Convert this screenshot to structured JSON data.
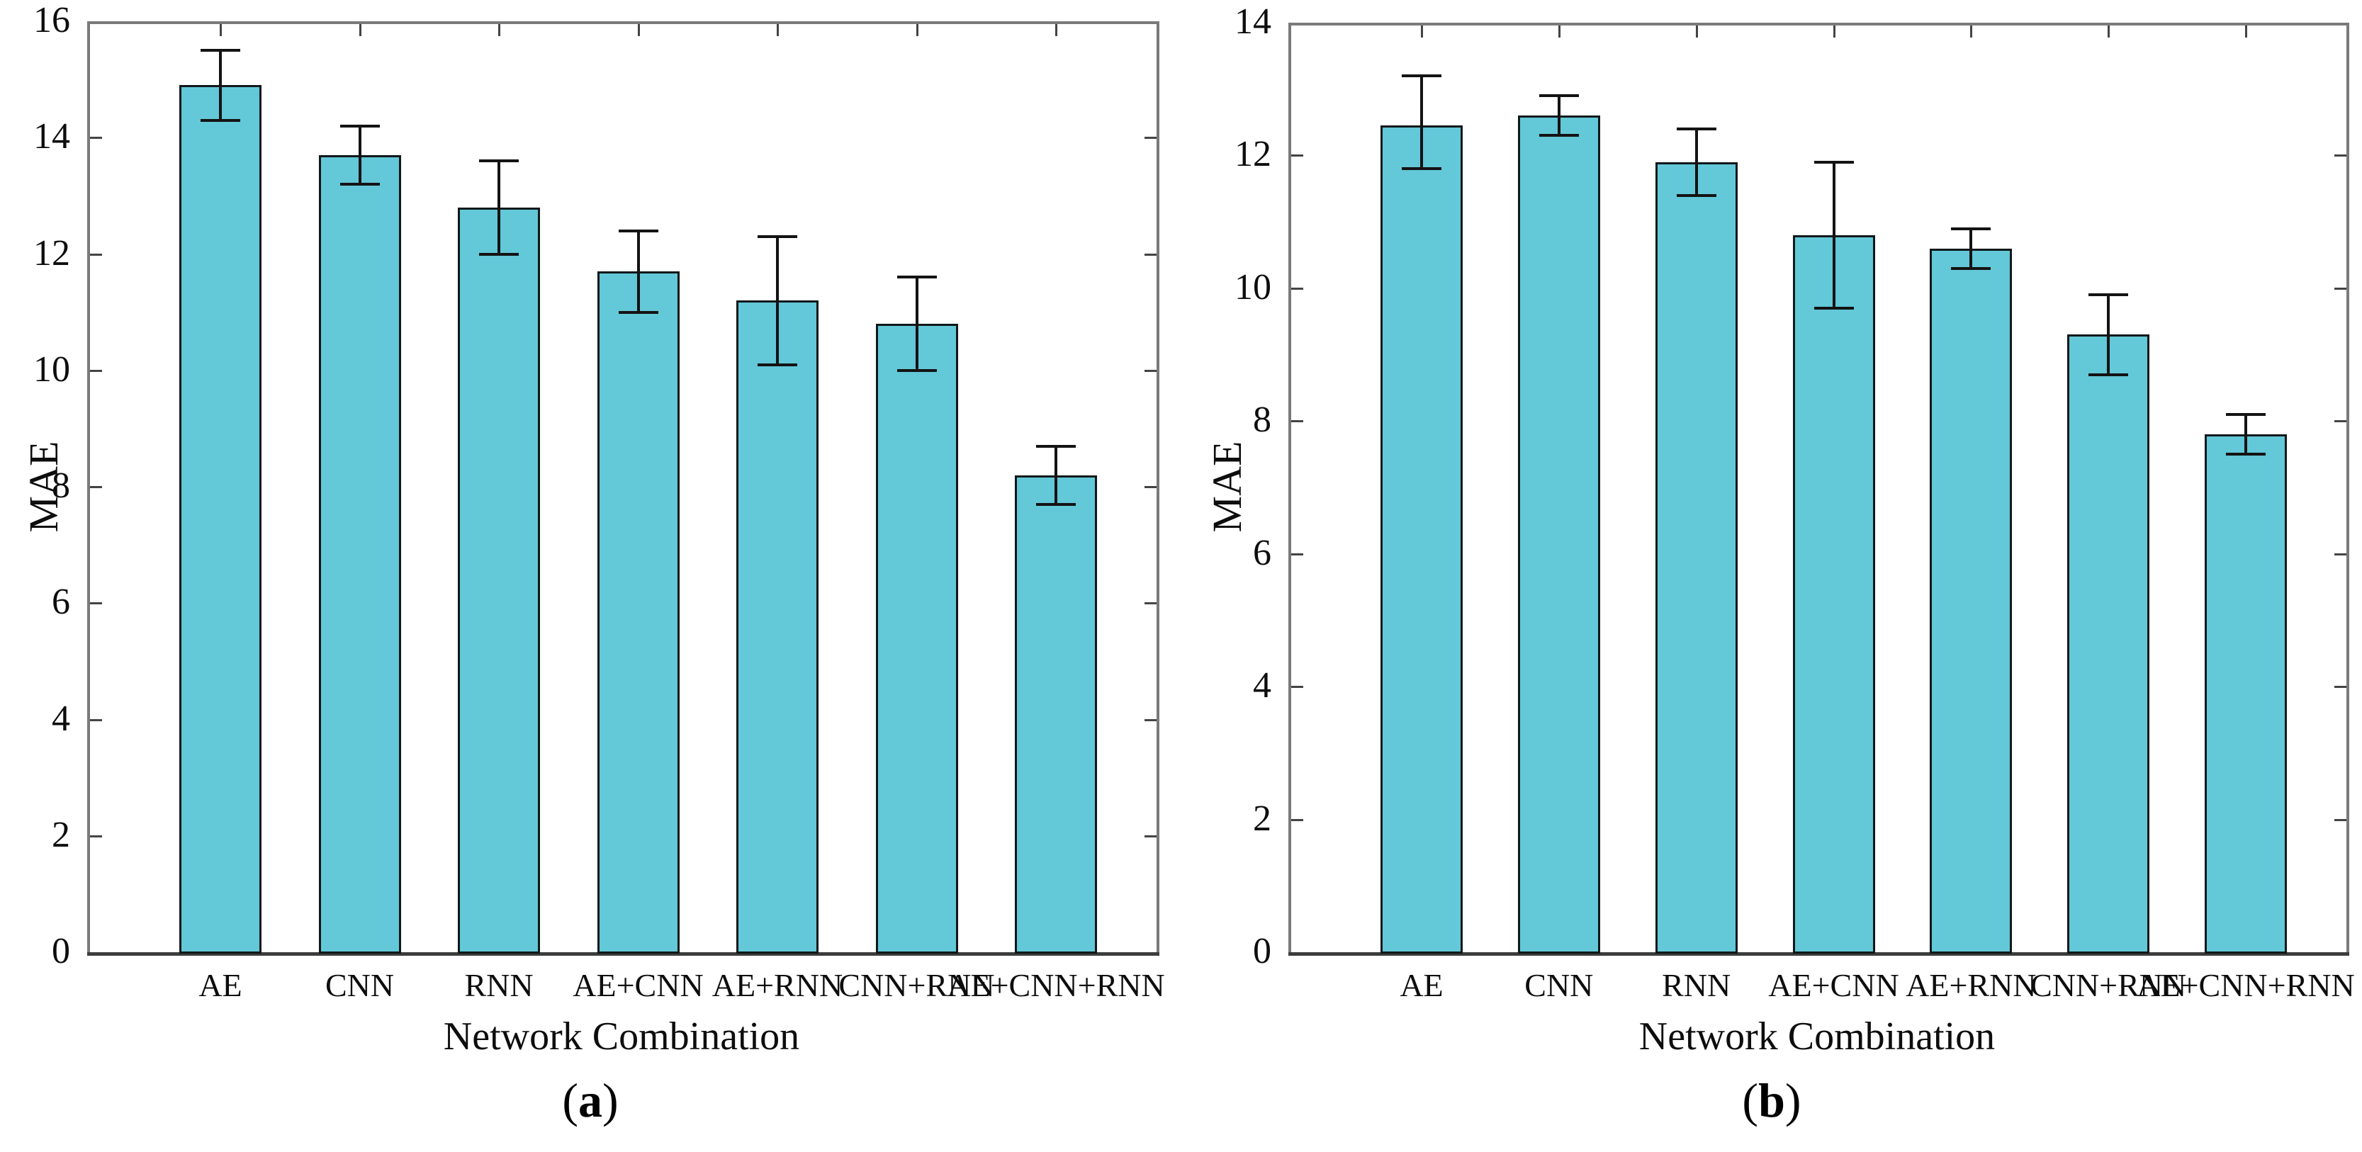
{
  "figure_background": "#ffffff",
  "chart_data": [
    {
      "type": "bar",
      "panel": "a",
      "title": "",
      "xlabel": "Network Combination",
      "ylabel": "MAE",
      "categories": [
        "AE",
        "CNN",
        "RNN",
        "AE+CNN",
        "AE+RNN",
        "CNN+RNN",
        "AE+CNN+RNN"
      ],
      "values": [
        14.9,
        13.7,
        12.8,
        11.7,
        11.2,
        10.8,
        8.2
      ],
      "error_low": [
        14.3,
        13.2,
        12.0,
        11.0,
        10.1,
        10.0,
        7.7
      ],
      "error_high": [
        15.5,
        14.2,
        13.6,
        12.4,
        12.3,
        11.6,
        8.7
      ],
      "ylim": [
        0,
        16
      ],
      "ytick_step": 2,
      "grid": false,
      "legend": null,
      "bar_color": "#63c8d8",
      "bar_edge_color": "#10181a",
      "error_color": "#131313",
      "frame_color": "#7a7a7a"
    },
    {
      "type": "bar",
      "panel": "b",
      "title": "",
      "xlabel": "Network Combination",
      "ylabel": "MAE",
      "categories": [
        "AE",
        "CNN",
        "RNN",
        "AE+CNN",
        "AE+RNN",
        "CNN+RNN",
        "AE+CNN+RNN"
      ],
      "values": [
        12.45,
        12.6,
        11.9,
        10.8,
        10.6,
        9.3,
        7.8
      ],
      "error_low": [
        11.8,
        12.3,
        11.4,
        9.7,
        10.3,
        8.7,
        7.5
      ],
      "error_high": [
        13.2,
        12.9,
        12.4,
        11.9,
        10.9,
        9.9,
        8.1
      ],
      "ylim": [
        0,
        14
      ],
      "ytick_step": 2,
      "grid": false,
      "legend": null,
      "bar_color": "#63c8d8",
      "bar_edge_color": "#10181a",
      "error_color": "#131313",
      "frame_color": "#7a7a7a"
    }
  ],
  "captions": [
    {
      "prefix": "(",
      "letter": "a",
      "suffix": ")"
    },
    {
      "prefix": "(",
      "letter": "b",
      "suffix": ")"
    }
  ]
}
